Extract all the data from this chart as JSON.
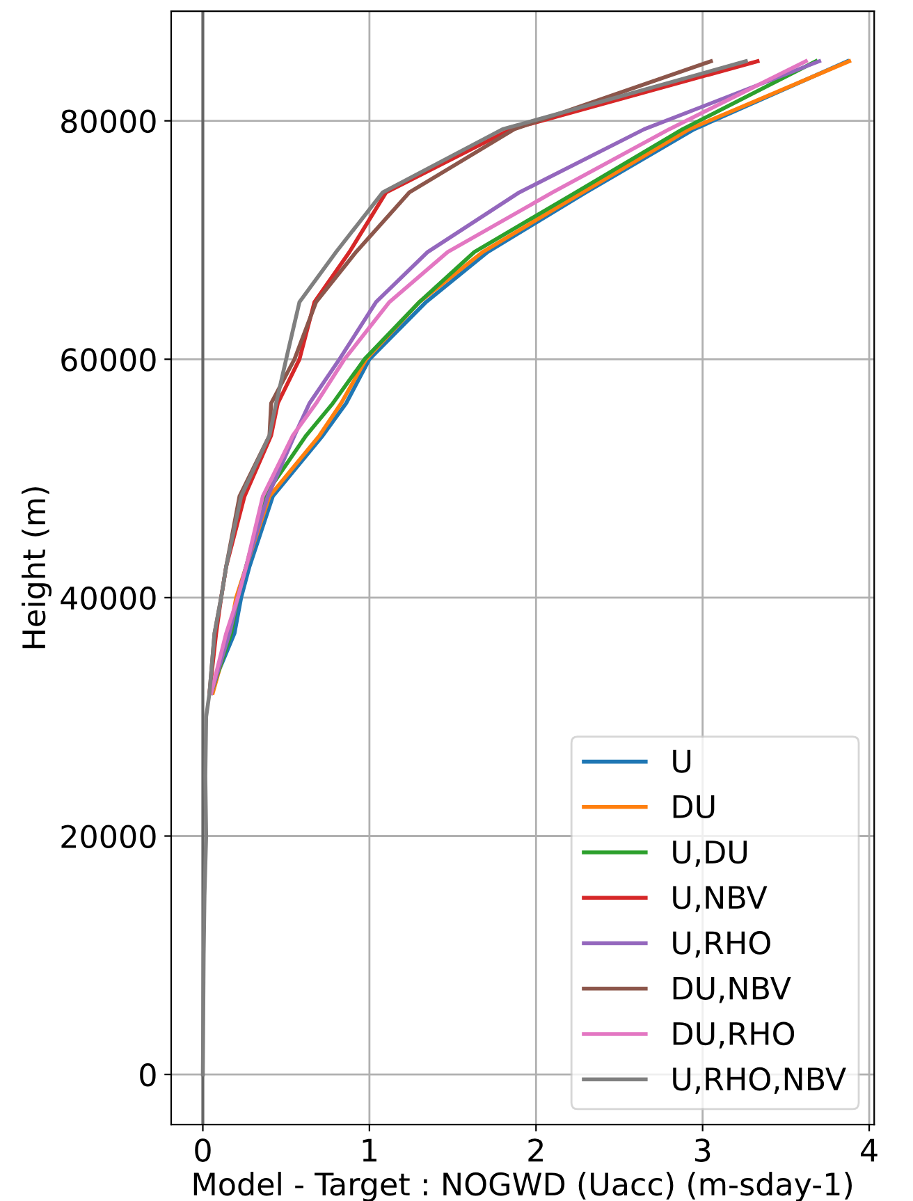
{
  "chart_data": {
    "type": "line",
    "xlabel": "Model - Target : NOGWD (Uacc) (m-sday-1)",
    "ylabel": "Height (m)",
    "xlim": [
      -0.19,
      4.03
    ],
    "xticks": [
      0,
      1,
      2,
      3,
      4
    ],
    "ylim": [
      -4200,
      89200
    ],
    "yticks": [
      0,
      20000,
      40000,
      60000,
      80000
    ],
    "grid": true,
    "legend": "bottom right",
    "line_style": "solid",
    "ref_lines": [
      {
        "axis": "x",
        "value": 0,
        "color": "#666666"
      }
    ],
    "series": [
      {
        "name": "U",
        "color": "#1f77b4",
        "x": [
          0.07,
          0.19,
          0.23,
          0.28,
          0.42,
          0.72,
          0.86,
          1.0,
          1.34,
          1.71,
          2.3,
          2.95,
          3.87
        ],
        "values": [
          33000,
          37000,
          40000,
          42600,
          48500,
          53600,
          56300,
          60000,
          64800,
          69000,
          74000,
          79300,
          85000
        ]
      },
      {
        "name": "DU",
        "color": "#ff7f0e",
        "x": [
          0.06,
          0.16,
          0.2,
          0.26,
          0.4,
          0.7,
          0.83,
          0.98,
          1.3,
          1.68,
          2.28,
          2.92,
          3.88
        ],
        "values": [
          32000,
          37000,
          40000,
          42600,
          48500,
          53600,
          56300,
          60000,
          64800,
          69000,
          74000,
          79300,
          85000
        ]
      },
      {
        "name": "U,DU",
        "color": "#2ca02c",
        "x": [
          0.05,
          0.17,
          0.21,
          0.26,
          0.37,
          0.62,
          0.78,
          0.97,
          1.3,
          1.63,
          2.24,
          2.88,
          3.68
        ],
        "values": [
          32000,
          37000,
          40000,
          42600,
          48500,
          53600,
          56300,
          60000,
          64800,
          69000,
          74000,
          79300,
          85000
        ]
      },
      {
        "name": "U,NBV",
        "color": "#d62728",
        "x": [
          0.04,
          0.08,
          0.11,
          0.14,
          0.25,
          0.41,
          0.45,
          0.58,
          0.67,
          0.88,
          1.1,
          1.85,
          3.33
        ],
        "values": [
          32000,
          37000,
          40000,
          42600,
          48500,
          53600,
          56300,
          60000,
          64800,
          69000,
          74000,
          79300,
          85000
        ]
      },
      {
        "name": "U,RHO",
        "color": "#9467bd",
        "x": [
          0.05,
          0.16,
          0.21,
          0.26,
          0.39,
          0.55,
          0.64,
          0.82,
          1.04,
          1.35,
          1.9,
          2.65,
          3.7
        ],
        "values": [
          32000,
          37000,
          40000,
          42600,
          48500,
          53600,
          56300,
          60000,
          64800,
          69000,
          74000,
          79300,
          85000
        ]
      },
      {
        "name": "DU,NBV",
        "color": "#8c564b",
        "x": [
          0.04,
          0.07,
          0.11,
          0.14,
          0.22,
          0.4,
          0.41,
          0.55,
          0.68,
          0.92,
          1.24,
          1.87,
          3.05
        ],
        "values": [
          32000,
          37000,
          40000,
          42600,
          48500,
          53600,
          56300,
          60000,
          64800,
          69000,
          74000,
          79300,
          85000
        ]
      },
      {
        "name": "DU,RHO",
        "color": "#e377c2",
        "x": [
          0.05,
          0.14,
          0.21,
          0.26,
          0.36,
          0.54,
          0.68,
          0.85,
          1.12,
          1.47,
          2.1,
          2.8,
          3.62
        ],
        "values": [
          32000,
          37000,
          40000,
          42600,
          48500,
          53600,
          56300,
          60000,
          64800,
          69000,
          74000,
          79300,
          85000
        ]
      },
      {
        "name": "U,RHO,NBV",
        "color": "#7f7f7f",
        "x": [
          0,
          0.005,
          0.01,
          0.02,
          0.015,
          0.02,
          0.04,
          0.07,
          0.11,
          0.14,
          0.23,
          0.4,
          0.44,
          0.5,
          0.58,
          0.8,
          1.08,
          1.8,
          3.26
        ],
        "values": [
          0,
          10000,
          15000,
          20000,
          25000,
          30000,
          32000,
          37000,
          40000,
          42600,
          48500,
          53600,
          56300,
          60000,
          64800,
          69000,
          74000,
          79300,
          85000
        ]
      }
    ]
  }
}
